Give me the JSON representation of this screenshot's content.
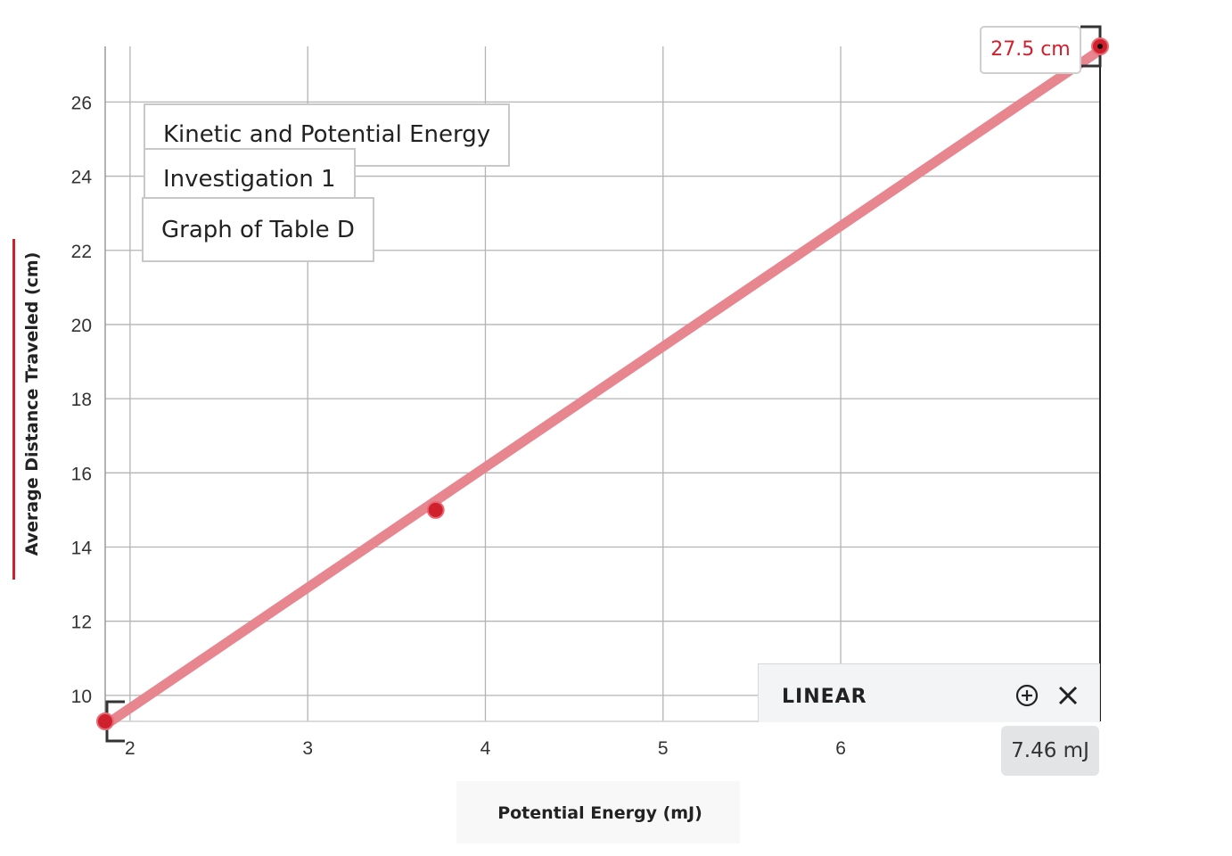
{
  "chart_data": {
    "type": "scatter",
    "titles": [
      "Kinetic and Potential Energy",
      "Investigation 1",
      "Graph of Table D"
    ],
    "xlabel": "Potential Energy (mJ)",
    "ylabel": "Average Distance Traveled   (cm)",
    "xlim": [
      1.86,
      7.46
    ],
    "ylim": [
      9.3,
      27.5
    ],
    "xticks": [
      "2",
      "3",
      "4",
      "5",
      "6"
    ],
    "yticks": [
      "10",
      "12",
      "14",
      "16",
      "18",
      "20",
      "22",
      "24",
      "26"
    ],
    "grid": true,
    "series": [
      {
        "points": [
          {
            "x": 1.86,
            "y": 9.3
          },
          {
            "x": 3.72,
            "y": 15.0
          },
          {
            "x": 7.46,
            "y": 27.5
          }
        ]
      }
    ],
    "fit": {
      "type": "linear",
      "line": [
        {
          "x": 1.86,
          "y": 9.2
        },
        {
          "x": 7.46,
          "y": 27.4
        }
      ],
      "color": "#e8868f"
    },
    "point_color": "#d0202e"
  },
  "readouts": {
    "y_value": "27.5 cm",
    "x_value": "7.46 mJ"
  },
  "fit_panel": {
    "label": "LINEAR",
    "add_icon": "plus-circle-icon",
    "close_icon": "close-icon"
  },
  "colors": {
    "accent": "#d0202e",
    "grid": "#b4b4b4"
  }
}
